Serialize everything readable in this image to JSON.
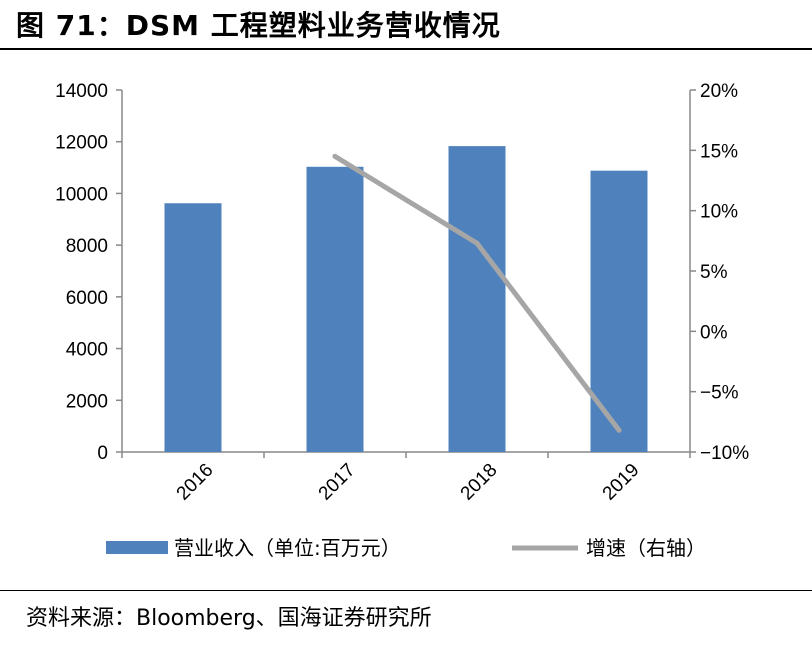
{
  "title": "图 71：DSM 工程塑料业务营收情况",
  "source": "资料来源：Bloomberg、国海证券研究所",
  "chart_data": {
    "type": "bar",
    "categories": [
      "2016",
      "2017",
      "2018",
      "2019"
    ],
    "series": [
      {
        "name": "营业收入（单位:百万元）",
        "type": "bar",
        "axis": "left",
        "color": "#4F81BD",
        "values": [
          9620,
          11030,
          11830,
          10880
        ]
      },
      {
        "name": "增速（右轴）",
        "type": "line",
        "axis": "right",
        "color": "#A6A6A6",
        "values": [
          null,
          14.5,
          7.3,
          -8.2
        ]
      }
    ],
    "y_left": {
      "min": 0,
      "max": 14000,
      "step": 2000,
      "tick_labels": [
        "0",
        "2000",
        "4000",
        "6000",
        "8000",
        "10000",
        "12000",
        "14000"
      ]
    },
    "y_right": {
      "min": -10,
      "max": 20,
      "step": 5,
      "tick_labels": [
        "−10%",
        "−5%",
        "0%",
        "5%",
        "10%",
        "15%",
        "20%"
      ]
    },
    "legend": {
      "position": "bottom",
      "items": [
        {
          "label": "营业收入（单位:百万元）",
          "color": "#4F81BD",
          "kind": "bar"
        },
        {
          "label": "增速（右轴）",
          "color": "#A6A6A6",
          "kind": "line"
        }
      ]
    },
    "grid": false
  }
}
